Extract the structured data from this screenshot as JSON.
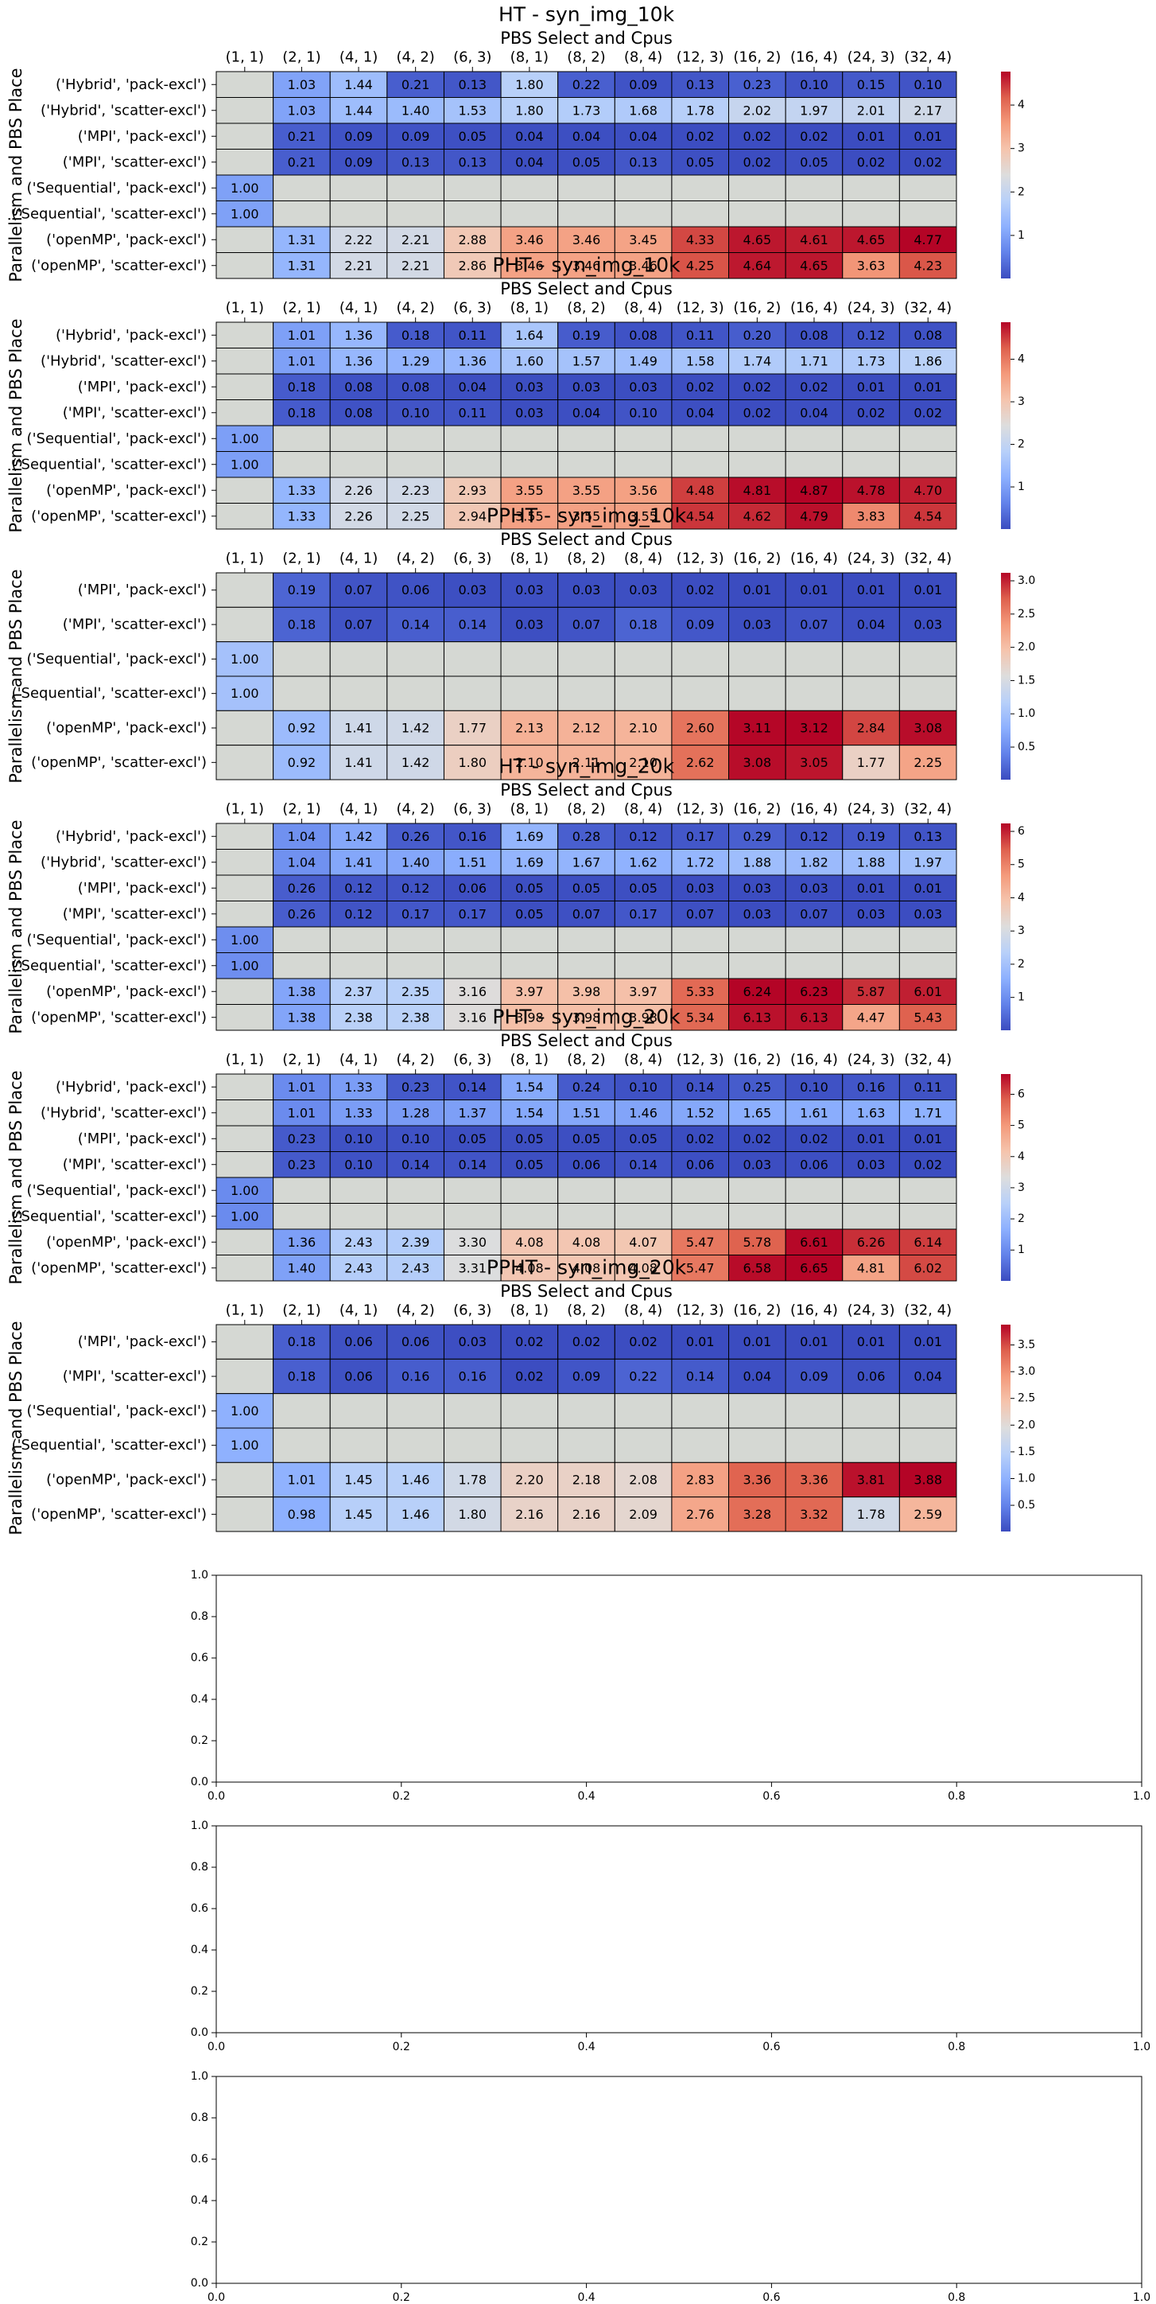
{
  "chart_data": [
    {
      "type": "heatmap",
      "title": "HT - syn_img_10k",
      "xlabel": "PBS Select and Cpus",
      "ylabel": "Parallelism and PBS Place",
      "columns": [
        "(1, 1)",
        "(2, 1)",
        "(4, 1)",
        "(4, 2)",
        "(6, 3)",
        "(8, 1)",
        "(8, 2)",
        "(8, 4)",
        "(12, 3)",
        "(16, 2)",
        "(16, 4)",
        "(24, 3)",
        "(32, 4)"
      ],
      "rows": [
        "('Hybrid', 'pack-excl')",
        "('Hybrid', 'scatter-excl')",
        "('MPI', 'pack-excl')",
        "('MPI', 'scatter-excl')",
        "('Sequential', 'pack-excl')",
        "('Sequential', 'scatter-excl')",
        "('openMP', 'pack-excl')",
        "('openMP', 'scatter-excl')"
      ],
      "values": [
        [
          null,
          1.03,
          1.44,
          0.21,
          0.13,
          1.8,
          0.22,
          0.09,
          0.13,
          0.23,
          0.1,
          0.15,
          0.1
        ],
        [
          null,
          1.03,
          1.44,
          1.4,
          1.53,
          1.8,
          1.73,
          1.68,
          1.78,
          2.02,
          1.97,
          2.01,
          2.17
        ],
        [
          null,
          0.21,
          0.09,
          0.09,
          0.05,
          0.04,
          0.04,
          0.04,
          0.02,
          0.02,
          0.02,
          0.01,
          0.01
        ],
        [
          null,
          0.21,
          0.09,
          0.13,
          0.13,
          0.04,
          0.05,
          0.13,
          0.05,
          0.02,
          0.05,
          0.02,
          0.02
        ],
        [
          1.0,
          null,
          null,
          null,
          null,
          null,
          null,
          null,
          null,
          null,
          null,
          null,
          null
        ],
        [
          1.0,
          null,
          null,
          null,
          null,
          null,
          null,
          null,
          null,
          null,
          null,
          null,
          null
        ],
        [
          null,
          1.31,
          2.22,
          2.21,
          2.88,
          3.46,
          3.46,
          3.45,
          4.33,
          4.65,
          4.61,
          4.65,
          4.77
        ],
        [
          null,
          1.31,
          2.21,
          2.21,
          2.86,
          3.46,
          3.46,
          3.46,
          4.25,
          4.64,
          4.65,
          3.63,
          4.23
        ]
      ],
      "vmin": 0.01,
      "vmax": 4.77,
      "colorbar_ticks": [
        1,
        2,
        3,
        4
      ]
    },
    {
      "type": "heatmap",
      "title": "PHT - syn_img_10k",
      "xlabel": "PBS Select and Cpus",
      "ylabel": "Parallelism and PBS Place",
      "columns": [
        "(1, 1)",
        "(2, 1)",
        "(4, 1)",
        "(4, 2)",
        "(6, 3)",
        "(8, 1)",
        "(8, 2)",
        "(8, 4)",
        "(12, 3)",
        "(16, 2)",
        "(16, 4)",
        "(24, 3)",
        "(32, 4)"
      ],
      "rows": [
        "('Hybrid', 'pack-excl')",
        "('Hybrid', 'scatter-excl')",
        "('MPI', 'pack-excl')",
        "('MPI', 'scatter-excl')",
        "('Sequential', 'pack-excl')",
        "('Sequential', 'scatter-excl')",
        "('openMP', 'pack-excl')",
        "('openMP', 'scatter-excl')"
      ],
      "values": [
        [
          null,
          1.01,
          1.36,
          0.18,
          0.11,
          1.64,
          0.19,
          0.08,
          0.11,
          0.2,
          0.08,
          0.12,
          0.08
        ],
        [
          null,
          1.01,
          1.36,
          1.29,
          1.36,
          1.6,
          1.57,
          1.49,
          1.58,
          1.74,
          1.71,
          1.73,
          1.86
        ],
        [
          null,
          0.18,
          0.08,
          0.08,
          0.04,
          0.03,
          0.03,
          0.03,
          0.02,
          0.02,
          0.02,
          0.01,
          0.01
        ],
        [
          null,
          0.18,
          0.08,
          0.1,
          0.11,
          0.03,
          0.04,
          0.1,
          0.04,
          0.02,
          0.04,
          0.02,
          0.02
        ],
        [
          1.0,
          null,
          null,
          null,
          null,
          null,
          null,
          null,
          null,
          null,
          null,
          null,
          null
        ],
        [
          1.0,
          null,
          null,
          null,
          null,
          null,
          null,
          null,
          null,
          null,
          null,
          null,
          null
        ],
        [
          null,
          1.33,
          2.26,
          2.23,
          2.93,
          3.55,
          3.55,
          3.56,
          4.48,
          4.81,
          4.87,
          4.78,
          4.7
        ],
        [
          null,
          1.33,
          2.26,
          2.25,
          2.94,
          3.55,
          3.55,
          3.55,
          4.54,
          4.62,
          4.79,
          3.83,
          4.54
        ]
      ],
      "vmin": 0.01,
      "vmax": 4.87,
      "colorbar_ticks": [
        1,
        2,
        3,
        4
      ]
    },
    {
      "type": "heatmap",
      "title": "PPHT - syn_img_10k",
      "xlabel": "PBS Select and Cpus",
      "ylabel": "Parallelism and PBS Place",
      "columns": [
        "(1, 1)",
        "(2, 1)",
        "(4, 1)",
        "(4, 2)",
        "(6, 3)",
        "(8, 1)",
        "(8, 2)",
        "(8, 4)",
        "(12, 3)",
        "(16, 2)",
        "(16, 4)",
        "(24, 3)",
        "(32, 4)"
      ],
      "rows": [
        "('MPI', 'pack-excl')",
        "('MPI', 'scatter-excl')",
        "('Sequential', 'pack-excl')",
        "('Sequential', 'scatter-excl')",
        "('openMP', 'pack-excl')",
        "('openMP', 'scatter-excl')"
      ],
      "values": [
        [
          null,
          0.19,
          0.07,
          0.06,
          0.03,
          0.03,
          0.03,
          0.03,
          0.02,
          0.01,
          0.01,
          0.01,
          0.01
        ],
        [
          null,
          0.18,
          0.07,
          0.14,
          0.14,
          0.03,
          0.07,
          0.18,
          0.09,
          0.03,
          0.07,
          0.04,
          0.03
        ],
        [
          1.0,
          null,
          null,
          null,
          null,
          null,
          null,
          null,
          null,
          null,
          null,
          null,
          null
        ],
        [
          1.0,
          null,
          null,
          null,
          null,
          null,
          null,
          null,
          null,
          null,
          null,
          null,
          null
        ],
        [
          null,
          0.92,
          1.41,
          1.42,
          1.77,
          2.13,
          2.12,
          2.1,
          2.6,
          3.11,
          3.12,
          2.84,
          3.08
        ],
        [
          null,
          0.92,
          1.41,
          1.42,
          1.8,
          2.1,
          2.11,
          2.1,
          2.62,
          3.08,
          3.05,
          1.77,
          2.25
        ]
      ],
      "vmin": 0.01,
      "vmax": 3.12,
      "colorbar_ticks": [
        0.5,
        1.0,
        1.5,
        2.0,
        2.5,
        3.0
      ]
    },
    {
      "type": "heatmap",
      "title": "HT - syn_img_20k",
      "xlabel": "PBS Select and Cpus",
      "ylabel": "Parallelism and PBS Place",
      "columns": [
        "(1, 1)",
        "(2, 1)",
        "(4, 1)",
        "(4, 2)",
        "(6, 3)",
        "(8, 1)",
        "(8, 2)",
        "(8, 4)",
        "(12, 3)",
        "(16, 2)",
        "(16, 4)",
        "(24, 3)",
        "(32, 4)"
      ],
      "rows": [
        "('Hybrid', 'pack-excl')",
        "('Hybrid', 'scatter-excl')",
        "('MPI', 'pack-excl')",
        "('MPI', 'scatter-excl')",
        "('Sequential', 'pack-excl')",
        "('Sequential', 'scatter-excl')",
        "('openMP', 'pack-excl')",
        "('openMP', 'scatter-excl')"
      ],
      "values": [
        [
          null,
          1.04,
          1.42,
          0.26,
          0.16,
          1.69,
          0.28,
          0.12,
          0.17,
          0.29,
          0.12,
          0.19,
          0.13
        ],
        [
          null,
          1.04,
          1.41,
          1.4,
          1.51,
          1.69,
          1.67,
          1.62,
          1.72,
          1.88,
          1.82,
          1.88,
          1.97
        ],
        [
          null,
          0.26,
          0.12,
          0.12,
          0.06,
          0.05,
          0.05,
          0.05,
          0.03,
          0.03,
          0.03,
          0.01,
          0.01
        ],
        [
          null,
          0.26,
          0.12,
          0.17,
          0.17,
          0.05,
          0.07,
          0.17,
          0.07,
          0.03,
          0.07,
          0.03,
          0.03
        ],
        [
          1.0,
          null,
          null,
          null,
          null,
          null,
          null,
          null,
          null,
          null,
          null,
          null,
          null
        ],
        [
          1.0,
          null,
          null,
          null,
          null,
          null,
          null,
          null,
          null,
          null,
          null,
          null,
          null
        ],
        [
          null,
          1.38,
          2.37,
          2.35,
          3.16,
          3.97,
          3.98,
          3.97,
          5.33,
          6.24,
          6.23,
          5.87,
          6.01
        ],
        [
          null,
          1.38,
          2.38,
          2.38,
          3.16,
          3.98,
          3.98,
          3.98,
          5.34,
          6.13,
          6.13,
          4.47,
          5.43
        ]
      ],
      "vmin": 0.01,
      "vmax": 6.24,
      "colorbar_ticks": [
        1,
        2,
        3,
        4,
        5,
        6
      ]
    },
    {
      "type": "heatmap",
      "title": "PHT - syn_img_20k",
      "xlabel": "PBS Select and Cpus",
      "ylabel": "Parallelism and PBS Place",
      "columns": [
        "(1, 1)",
        "(2, 1)",
        "(4, 1)",
        "(4, 2)",
        "(6, 3)",
        "(8, 1)",
        "(8, 2)",
        "(8, 4)",
        "(12, 3)",
        "(16, 2)",
        "(16, 4)",
        "(24, 3)",
        "(32, 4)"
      ],
      "rows": [
        "('Hybrid', 'pack-excl')",
        "('Hybrid', 'scatter-excl')",
        "('MPI', 'pack-excl')",
        "('MPI', 'scatter-excl')",
        "('Sequential', 'pack-excl')",
        "('Sequential', 'scatter-excl')",
        "('openMP', 'pack-excl')",
        "('openMP', 'scatter-excl')"
      ],
      "values": [
        [
          null,
          1.01,
          1.33,
          0.23,
          0.14,
          1.54,
          0.24,
          0.1,
          0.14,
          0.25,
          0.1,
          0.16,
          0.11
        ],
        [
          null,
          1.01,
          1.33,
          1.28,
          1.37,
          1.54,
          1.51,
          1.46,
          1.52,
          1.65,
          1.61,
          1.63,
          1.71
        ],
        [
          null,
          0.23,
          0.1,
          0.1,
          0.05,
          0.05,
          0.05,
          0.05,
          0.02,
          0.02,
          0.02,
          0.01,
          0.01
        ],
        [
          null,
          0.23,
          0.1,
          0.14,
          0.14,
          0.05,
          0.06,
          0.14,
          0.06,
          0.03,
          0.06,
          0.03,
          0.02
        ],
        [
          1.0,
          null,
          null,
          null,
          null,
          null,
          null,
          null,
          null,
          null,
          null,
          null,
          null
        ],
        [
          1.0,
          null,
          null,
          null,
          null,
          null,
          null,
          null,
          null,
          null,
          null,
          null,
          null
        ],
        [
          null,
          1.36,
          2.43,
          2.39,
          3.3,
          4.08,
          4.08,
          4.07,
          5.47,
          5.78,
          6.61,
          6.26,
          6.14
        ],
        [
          null,
          1.4,
          2.43,
          2.43,
          3.31,
          4.08,
          4.08,
          4.08,
          5.47,
          6.58,
          6.65,
          4.81,
          6.02
        ]
      ],
      "vmin": 0.01,
      "vmax": 6.65,
      "colorbar_ticks": [
        1,
        2,
        3,
        4,
        5,
        6
      ]
    },
    {
      "type": "heatmap",
      "title": "PPHT - syn_img_20k",
      "xlabel": "PBS Select and Cpus",
      "ylabel": "Parallelism and PBS Place",
      "columns": [
        "(1, 1)",
        "(2, 1)",
        "(4, 1)",
        "(4, 2)",
        "(6, 3)",
        "(8, 1)",
        "(8, 2)",
        "(8, 4)",
        "(12, 3)",
        "(16, 2)",
        "(16, 4)",
        "(24, 3)",
        "(32, 4)"
      ],
      "rows": [
        "('MPI', 'pack-excl')",
        "('MPI', 'scatter-excl')",
        "('Sequential', 'pack-excl')",
        "('Sequential', 'scatter-excl')",
        "('openMP', 'pack-excl')",
        "('openMP', 'scatter-excl')"
      ],
      "values": [
        [
          null,
          0.18,
          0.06,
          0.06,
          0.03,
          0.02,
          0.02,
          0.02,
          0.01,
          0.01,
          0.01,
          0.01,
          0.01
        ],
        [
          null,
          0.18,
          0.06,
          0.16,
          0.16,
          0.02,
          0.09,
          0.22,
          0.14,
          0.04,
          0.09,
          0.06,
          0.04
        ],
        [
          1.0,
          null,
          null,
          null,
          null,
          null,
          null,
          null,
          null,
          null,
          null,
          null,
          null
        ],
        [
          1.0,
          null,
          null,
          null,
          null,
          null,
          null,
          null,
          null,
          null,
          null,
          null,
          null
        ],
        [
          null,
          1.01,
          1.45,
          1.46,
          1.78,
          2.2,
          2.18,
          2.08,
          2.83,
          3.36,
          3.36,
          3.81,
          3.88
        ],
        [
          null,
          0.98,
          1.45,
          1.46,
          1.8,
          2.16,
          2.16,
          2.09,
          2.76,
          3.28,
          3.32,
          1.78,
          2.59
        ]
      ],
      "vmin": 0.01,
      "vmax": 3.88,
      "colorbar_ticks": [
        0.5,
        1.0,
        1.5,
        2.0,
        2.5,
        3.0,
        3.5
      ]
    },
    {
      "type": "empty",
      "xlim": [
        0,
        1
      ],
      "ylim": [
        0,
        1
      ],
      "xticks": [
        "0.0",
        "0.2",
        "0.4",
        "0.6",
        "0.8",
        "1.0"
      ],
      "yticks": [
        "0.0",
        "0.2",
        "0.4",
        "0.6",
        "0.8",
        "1.0"
      ]
    },
    {
      "type": "empty",
      "xlim": [
        0,
        1
      ],
      "ylim": [
        0,
        1
      ],
      "xticks": [
        "0.0",
        "0.2",
        "0.4",
        "0.6",
        "0.8",
        "1.0"
      ],
      "yticks": [
        "0.0",
        "0.2",
        "0.4",
        "0.6",
        "0.8",
        "1.0"
      ]
    },
    {
      "type": "empty",
      "xlim": [
        0,
        1
      ],
      "ylim": [
        0,
        1
      ],
      "xticks": [
        "0.0",
        "0.2",
        "0.4",
        "0.6",
        "0.8",
        "1.0"
      ],
      "yticks": [
        "0.0",
        "0.2",
        "0.4",
        "0.6",
        "0.8",
        "1.0"
      ]
    }
  ],
  "colormap": "coolwarm",
  "missing_cell_color": "#d5d8d3"
}
